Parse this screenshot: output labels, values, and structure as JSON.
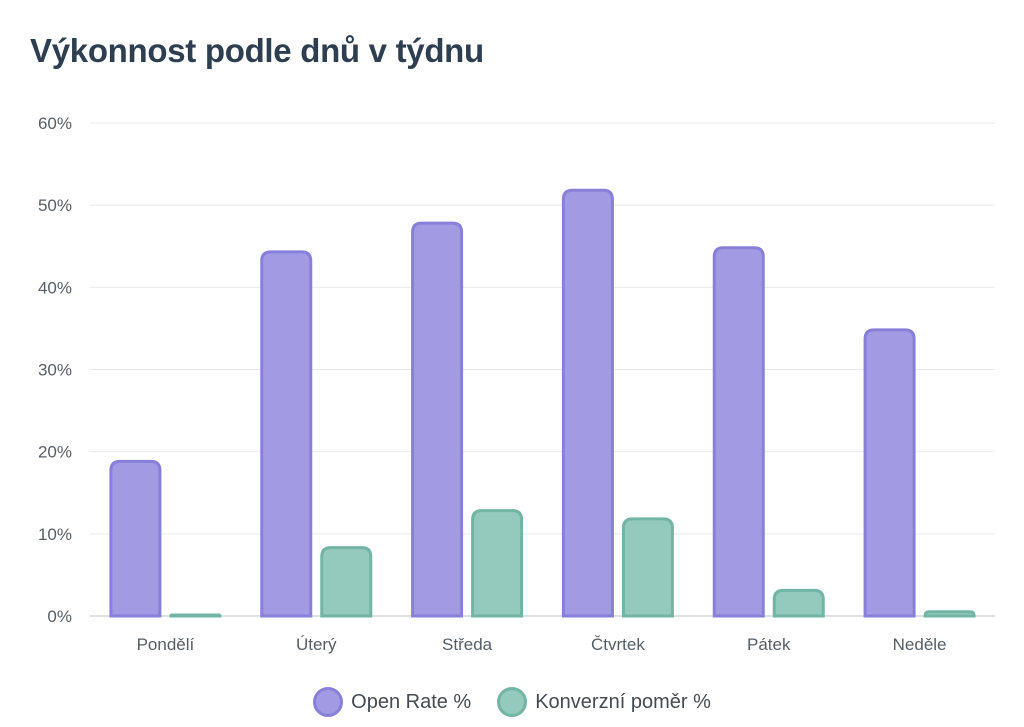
{
  "chart": {
    "title": "Výkonnost podle dnů v týdnu"
  },
  "colors": {
    "open_rate_fill": "#a29be4",
    "open_rate_stroke": "#8880d8",
    "conversion_fill": "#94c9bd",
    "conversion_stroke": "#72b5a4",
    "grid": "#e8ebee",
    "axis": "#d3d7db"
  },
  "chart_data": {
    "type": "bar",
    "title": "Výkonnost podle dnů v týdnu",
    "xlabel": "",
    "ylabel": "",
    "categories": [
      "Pondělí",
      "Úterý",
      "Středa",
      "Čtvrtek",
      "Pátek",
      "Neděle"
    ],
    "series": [
      {
        "name": "Open Rate %",
        "values": [
          19,
          44.5,
          48,
          52,
          45,
          35
        ]
      },
      {
        "name": "Konverzní poměr %",
        "values": [
          0.3,
          8.5,
          13,
          12,
          3.3,
          0.7
        ]
      }
    ],
    "ylim": [
      0,
      60
    ],
    "yticks": [
      0,
      10,
      20,
      30,
      40,
      50,
      60
    ],
    "ytick_labels": [
      "0%",
      "10%",
      "20%",
      "30%",
      "40%",
      "50%",
      "60%"
    ],
    "grid": true,
    "legend_position": "bottom"
  }
}
